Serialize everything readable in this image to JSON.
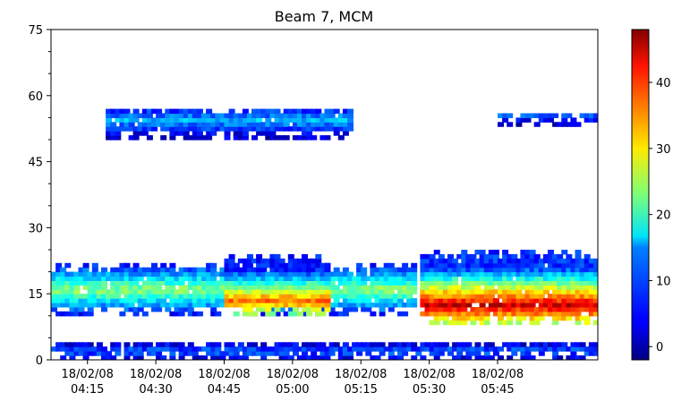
{
  "chart_data": {
    "type": "heatmap",
    "title": "Beam 7, MCM",
    "xlabel": "",
    "ylabel": "",
    "ylim": [
      0,
      75
    ],
    "yticks": [
      0,
      15,
      30,
      45,
      60,
      75
    ],
    "xlim": [
      "2008-02-18 04:07",
      "2008-02-18 06:07"
    ],
    "xticks": [
      {
        "label": "18/02/08",
        "time": "04:15"
      },
      {
        "label": "18/02/08",
        "time": "04:30"
      },
      {
        "label": "18/02/08",
        "time": "04:45"
      },
      {
        "label": "18/02/08",
        "time": "05:00"
      },
      {
        "label": "18/02/08",
        "time": "05:15"
      },
      {
        "label": "18/02/08",
        "time": "05:30"
      },
      {
        "label": "18/02/08",
        "time": "05:45"
      }
    ],
    "colorbar": {
      "colormap": "jet",
      "range": [
        -2,
        48
      ],
      "ticks": [
        0,
        10,
        20,
        30,
        40
      ]
    },
    "grid": false,
    "layers": [
      {
        "t_start": "04:07",
        "t_end": "05:27",
        "y_low": 10,
        "y_high": 22,
        "peak_y": 15.5,
        "peak": 24,
        "top_y": 21
      },
      {
        "t_start": "04:45",
        "t_end": "05:08",
        "y_low": 10,
        "y_high": 24,
        "peak_y": 13,
        "peak": 36,
        "top_y": 23
      },
      {
        "t_start": "05:28",
        "t_end": "06:07",
        "y_low": 8,
        "y_high": 25,
        "peak_y": 12,
        "peak": 44,
        "top_y": 24
      },
      {
        "t_start": "04:07",
        "t_end": "06:07",
        "y_low": 0,
        "y_high": 4,
        "peak_y": 1.5,
        "peak": 9,
        "top_y": 4
      },
      {
        "t_start": "04:19",
        "t_end": "05:13",
        "y_low": 50,
        "y_high": 57,
        "peak_y": 54,
        "peak": 13,
        "top_y": 57
      },
      {
        "t_start": "05:45",
        "t_end": "06:07",
        "y_low": 53,
        "y_high": 56,
        "peak_y": 55,
        "peak": 9,
        "top_y": 56
      }
    ]
  }
}
